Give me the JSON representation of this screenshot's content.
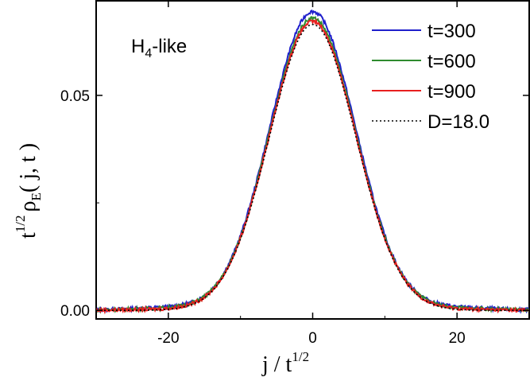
{
  "chart_data": {
    "type": "line",
    "title": "",
    "annotation": {
      "main": "H",
      "sub": "4",
      "rest": "-like"
    },
    "xlabel": {
      "main": "j / t",
      "sup": "1/2"
    },
    "ylabel": {
      "t": "t",
      "t_sup": "1/2",
      "rho": "ρ",
      "rho_sub": "E",
      "args": "( j, t )"
    },
    "xlim": [
      -30,
      30
    ],
    "ylim": [
      -0.002,
      0.072
    ],
    "xticks": [
      -20,
      0,
      20
    ],
    "xtick_labels": [
      "-20",
      "0",
      "20"
    ],
    "yticks": [
      0.0,
      0.05
    ],
    "ytick_labels": [
      "0.00",
      "0.05"
    ],
    "grid": false,
    "legend_position": "top-right",
    "series": [
      {
        "name": "t=300",
        "color": "#1f1fcc",
        "style": "solid",
        "peak": 0.0695,
        "tail": 0.0
      },
      {
        "name": "t=600",
        "color": "#2e8b2e",
        "style": "solid",
        "peak": 0.068,
        "tail": 0.0
      },
      {
        "name": "t=900",
        "color": "#e81f1f",
        "style": "solid",
        "peak": 0.0672,
        "tail": 0.0
      },
      {
        "name": "D=18.0",
        "color": "#000000",
        "style": "dotted",
        "peak": 0.0665,
        "tail": 0.0
      }
    ]
  }
}
